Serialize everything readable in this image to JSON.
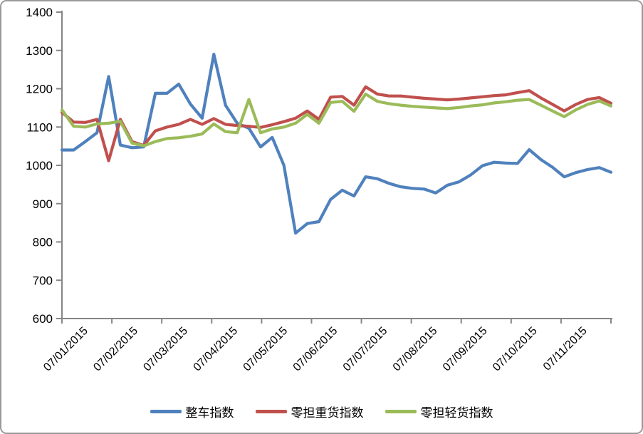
{
  "chart_data": {
    "type": "line",
    "title": "",
    "xlabel": "",
    "ylabel": "",
    "x_labels": [
      "07/01/2015",
      "07/02/2015",
      "07/03/2015",
      "07/04/2015",
      "07/05/2015",
      "07/06/2015",
      "07/07/2015",
      "07/08/2015",
      "07/09/2015",
      "07/10/2015",
      "07/11/2015"
    ],
    "y_axis": {
      "min": 600,
      "max": 1400,
      "step": 100
    },
    "grid": false,
    "legend_position": "bottom",
    "series": [
      {
        "name": "整车指数",
        "color": "#4F81BD",
        "values": [
          1040,
          1040,
          1062,
          1085,
          1232,
          1053,
          1046,
          1048,
          1188,
          1188,
          1212,
          1160,
          1123,
          1290,
          1157,
          1110,
          1097,
          1048,
          1073,
          1000,
          823,
          848,
          853,
          911,
          935,
          920,
          970,
          965,
          953,
          944,
          940,
          938,
          928,
          948,
          957,
          975,
          999,
          1008,
          1006,
          1005,
          1041,
          1015,
          995,
          970,
          981,
          989,
          994,
          982
        ]
      },
      {
        "name": "零担重货指数",
        "color": "#C0504D",
        "values": [
          1138,
          1113,
          1112,
          1120,
          1012,
          1120,
          1062,
          1052,
          1090,
          1100,
          1107,
          1120,
          1107,
          1122,
          1107,
          1104,
          1102,
          1099,
          1106,
          1114,
          1123,
          1142,
          1120,
          1178,
          1180,
          1157,
          1205,
          1186,
          1181,
          1181,
          1178,
          1175,
          1173,
          1171,
          1173,
          1176,
          1179,
          1182,
          1184,
          1190,
          1195,
          1176,
          1159,
          1142,
          1159,
          1172,
          1177,
          1162
        ]
      },
      {
        "name": "零担轻货指数",
        "color": "#9BBB59",
        "values": [
          1145,
          1102,
          1100,
          1108,
          1110,
          1115,
          1058,
          1051,
          1062,
          1070,
          1072,
          1076,
          1082,
          1108,
          1088,
          1085,
          1172,
          1085,
          1095,
          1100,
          1110,
          1133,
          1110,
          1164,
          1167,
          1141,
          1186,
          1167,
          1161,
          1157,
          1154,
          1152,
          1150,
          1148,
          1151,
          1155,
          1158,
          1163,
          1166,
          1170,
          1172,
          1157,
          1142,
          1127,
          1145,
          1159,
          1168,
          1155
        ]
      }
    ]
  },
  "frame": {
    "background": "#FFFFFF",
    "border_color": "#9A9A9A"
  },
  "axis": {
    "line_color": "#868686",
    "tick_color": "#868686",
    "text_color": "#000000",
    "y_font_px": 17,
    "x_font_px": 16
  }
}
